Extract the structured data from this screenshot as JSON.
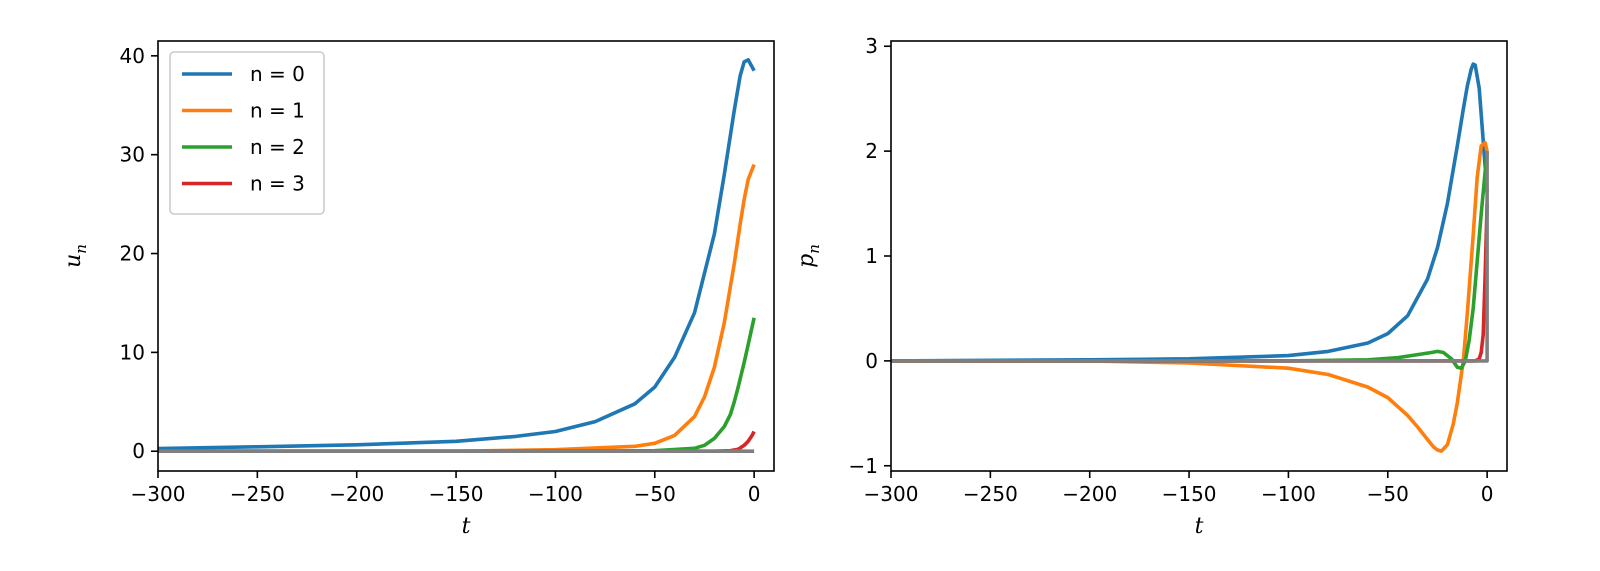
{
  "chart_data": [
    {
      "type": "line",
      "xlabel": "t",
      "ylabel": "u",
      "ylabel_sub": "n",
      "xlim": [
        -300,
        10
      ],
      "ylim": [
        -2,
        41.5
      ],
      "xticks": [
        -300,
        -250,
        -200,
        -150,
        -100,
        -50,
        0
      ],
      "xtick_labels": [
        "−300",
        "−250",
        "−200",
        "−150",
        "−100",
        "−50",
        "0"
      ],
      "yticks": [
        0,
        10,
        20,
        30,
        40
      ],
      "ytick_labels": [
        "0",
        "10",
        "20",
        "30",
        "40"
      ],
      "legend": "top-left",
      "series": [
        {
          "name": "n = 0",
          "color": "#1f77b4",
          "x": [
            -300,
            -250,
            -200,
            -150,
            -120,
            -100,
            -80,
            -60,
            -50,
            -40,
            -30,
            -20,
            -15,
            -10,
            -7,
            -5,
            -3,
            0
          ],
          "y": [
            0.28,
            0.45,
            0.65,
            1.0,
            1.5,
            2.0,
            3.0,
            4.8,
            6.5,
            9.5,
            14.0,
            22.0,
            28.0,
            34.5,
            38.0,
            39.4,
            39.6,
            38.5
          ]
        },
        {
          "name": "n = 1",
          "color": "#ff7f0e",
          "x": [
            -300,
            -150,
            -100,
            -60,
            -50,
            -40,
            -30,
            -25,
            -20,
            -15,
            -10,
            -7,
            -5,
            -3,
            -1,
            0
          ],
          "y": [
            0.0,
            0.0,
            0.15,
            0.5,
            0.8,
            1.6,
            3.5,
            5.5,
            8.5,
            13.0,
            19.0,
            23.0,
            25.5,
            27.5,
            28.5,
            29.0
          ]
        },
        {
          "name": "n = 2",
          "color": "#2ca02c",
          "x": [
            -300,
            -100,
            -50,
            -30,
            -25,
            -20,
            -15,
            -12,
            -10,
            -8,
            -5,
            -3,
            0
          ],
          "y": [
            0.0,
            0.0,
            0.05,
            0.3,
            0.6,
            1.3,
            2.5,
            3.7,
            5.0,
            6.5,
            9.0,
            10.8,
            13.5
          ]
        },
        {
          "name": "n = 3",
          "color": "#d62728",
          "x": [
            -300,
            -20,
            -12,
            -8,
            -5,
            -3,
            -1,
            0
          ],
          "y": [
            0.0,
            0.0,
            0.05,
            0.2,
            0.6,
            1.0,
            1.6,
            2.0
          ]
        },
        {
          "name": "",
          "color": "#7f7f7f",
          "x": [
            -300,
            0
          ],
          "y": [
            0.0,
            0.0
          ]
        }
      ]
    },
    {
      "type": "line",
      "xlabel": "t",
      "ylabel": "p",
      "ylabel_sub": "n",
      "xlim": [
        -300,
        10
      ],
      "ylim": [
        -1.05,
        3.05
      ],
      "xticks": [
        -300,
        -250,
        -200,
        -150,
        -100,
        -50,
        0
      ],
      "xtick_labels": [
        "−300",
        "−250",
        "−200",
        "−150",
        "−100",
        "−50",
        "0"
      ],
      "yticks": [
        -1,
        0,
        1,
        2,
        3
      ],
      "ytick_labels": [
        "−1",
        "0",
        "1",
        "2",
        "3"
      ],
      "series": [
        {
          "name": "n = 0",
          "color": "#1f77b4",
          "x": [
            -300,
            -200,
            -150,
            -100,
            -80,
            -60,
            -50,
            -40,
            -30,
            -25,
            -20,
            -15,
            -12,
            -10,
            -8,
            -7,
            -6,
            -4,
            -2,
            0
          ],
          "y": [
            0.0,
            0.01,
            0.02,
            0.05,
            0.09,
            0.17,
            0.26,
            0.43,
            0.78,
            1.08,
            1.5,
            2.05,
            2.4,
            2.62,
            2.78,
            2.83,
            2.82,
            2.6,
            2.1,
            1.6
          ]
        },
        {
          "name": "n = 1",
          "color": "#ff7f0e",
          "x": [
            -300,
            -200,
            -150,
            -100,
            -80,
            -60,
            -50,
            -40,
            -35,
            -30,
            -27,
            -25,
            -23,
            -20,
            -17,
            -15,
            -12,
            -10,
            -7,
            -5,
            -3,
            -1,
            0
          ],
          "y": [
            0.0,
            0.0,
            -0.02,
            -0.07,
            -0.13,
            -0.25,
            -0.35,
            -0.52,
            -0.63,
            -0.75,
            -0.82,
            -0.85,
            -0.86,
            -0.8,
            -0.6,
            -0.4,
            0.0,
            0.45,
            1.2,
            1.75,
            2.05,
            2.08,
            2.0
          ]
        },
        {
          "name": "n = 2",
          "color": "#2ca02c",
          "x": [
            -300,
            -100,
            -60,
            -45,
            -35,
            -28,
            -25,
            -22,
            -18,
            -15,
            -13,
            -11,
            -9,
            -7,
            -5,
            -3,
            -1,
            0
          ],
          "y": [
            0.0,
            0.0,
            0.01,
            0.03,
            0.06,
            0.08,
            0.09,
            0.08,
            0.02,
            -0.06,
            -0.07,
            0.0,
            0.2,
            0.5,
            0.95,
            1.4,
            1.8,
            2.0
          ]
        },
        {
          "name": "n = 3",
          "color": "#d62728",
          "x": [
            -300,
            -10,
            -6,
            -4,
            -3,
            -2,
            -1,
            0
          ],
          "y": [
            0.0,
            0.0,
            0.0,
            0.02,
            0.08,
            0.25,
            0.8,
            1.5
          ]
        },
        {
          "name": "",
          "color": "#7f7f7f",
          "x": [
            -300,
            0,
            0
          ],
          "y": [
            0.0,
            0.0,
            2.0
          ]
        }
      ]
    }
  ]
}
